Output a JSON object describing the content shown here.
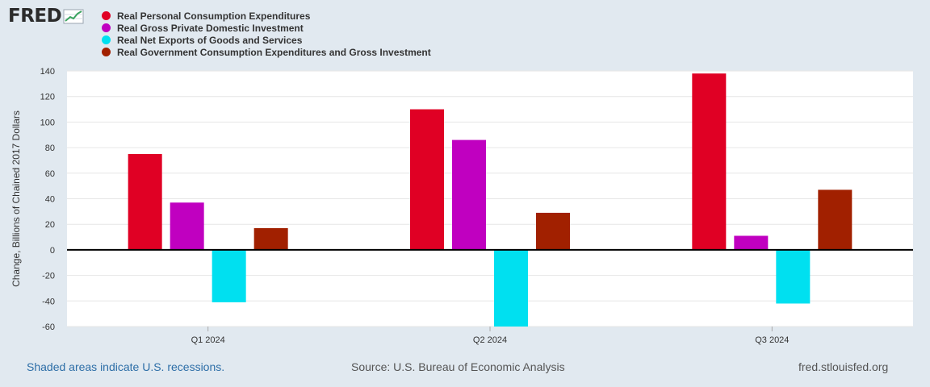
{
  "logo": {
    "text": "FRED"
  },
  "chart_data": {
    "type": "bar",
    "categories": [
      "Q1 2024",
      "Q2 2024",
      "Q3 2024"
    ],
    "series": [
      {
        "name": "Real Personal Consumption Expenditures",
        "color": "#e00024",
        "values": [
          75,
          110,
          138
        ]
      },
      {
        "name": "Real Gross Private Domestic Investment",
        "color": "#c000c0",
        "values": [
          37,
          86,
          11
        ]
      },
      {
        "name": "Real Net Exports of Goods and Services",
        "color": "#00e0f0",
        "values": [
          -41,
          -60,
          -42
        ]
      },
      {
        "name": "Real Government Consumption Expenditures and Gross Investment",
        "color": "#a12000",
        "values": [
          17,
          29,
          47
        ]
      }
    ],
    "ylabel": "Change, Billions of Chained 2017 Dollars",
    "ylim": [
      -60,
      140
    ],
    "yticks": [
      140,
      120,
      100,
      80,
      60,
      40,
      20,
      0,
      -20,
      -40,
      -60
    ],
    "grid": true
  },
  "footer": {
    "recession_note": "Shaded areas indicate U.S. recessions.",
    "source": "Source: U.S. Bureau of Economic Analysis",
    "site": "fred.stlouisfed.org"
  }
}
